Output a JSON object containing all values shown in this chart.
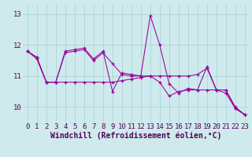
{
  "xlabel": "Windchill (Refroidissement éolien,°C)",
  "background_color": "#ceeaed",
  "grid_color": "#aed4d8",
  "line_color": "#990099",
  "xlim": [
    -0.5,
    23.5
  ],
  "ylim": [
    9.5,
    13.3
  ],
  "yticks": [
    10,
    11,
    12,
    13
  ],
  "xticks": [
    0,
    1,
    2,
    3,
    4,
    5,
    6,
    7,
    8,
    9,
    10,
    11,
    12,
    13,
    14,
    15,
    16,
    17,
    18,
    19,
    20,
    21,
    22,
    23
  ],
  "series1_x": [
    0,
    1,
    2,
    3,
    4,
    5,
    6,
    7,
    8,
    9,
    10,
    11,
    12,
    13,
    14,
    15,
    16,
    17,
    18,
    19,
    20,
    21,
    22,
    23
  ],
  "series1_y": [
    11.8,
    11.6,
    10.8,
    10.8,
    11.8,
    11.85,
    11.9,
    11.55,
    11.8,
    10.5,
    11.1,
    11.05,
    11.0,
    12.95,
    12.0,
    10.75,
    10.45,
    10.6,
    10.55,
    11.3,
    10.55,
    10.55,
    10.0,
    9.75
  ],
  "series2_x": [
    0,
    1,
    2,
    3,
    4,
    5,
    6,
    7,
    8,
    9,
    10,
    11,
    12,
    13,
    14,
    15,
    16,
    17,
    18,
    19,
    20,
    21,
    22,
    23
  ],
  "series2_y": [
    11.8,
    11.6,
    10.8,
    10.8,
    11.75,
    11.8,
    11.85,
    11.5,
    11.75,
    11.4,
    11.05,
    11.0,
    11.0,
    11.0,
    11.0,
    11.0,
    11.0,
    11.0,
    11.05,
    11.25,
    10.55,
    10.55,
    9.95,
    9.75
  ],
  "series3_x": [
    0,
    1,
    2,
    3,
    4,
    5,
    6,
    7,
    8,
    9,
    10,
    11,
    12,
    13,
    14,
    15,
    16,
    17,
    18,
    19,
    20,
    21,
    22,
    23
  ],
  "series3_y": [
    11.8,
    11.55,
    10.8,
    10.8,
    10.8,
    10.8,
    10.8,
    10.8,
    10.8,
    10.8,
    10.85,
    10.9,
    10.95,
    11.0,
    10.8,
    10.35,
    10.5,
    10.55,
    10.55,
    10.55,
    10.55,
    10.45,
    9.95,
    9.75
  ],
  "xlabel_fontsize": 7,
  "tick_fontsize": 6.5
}
